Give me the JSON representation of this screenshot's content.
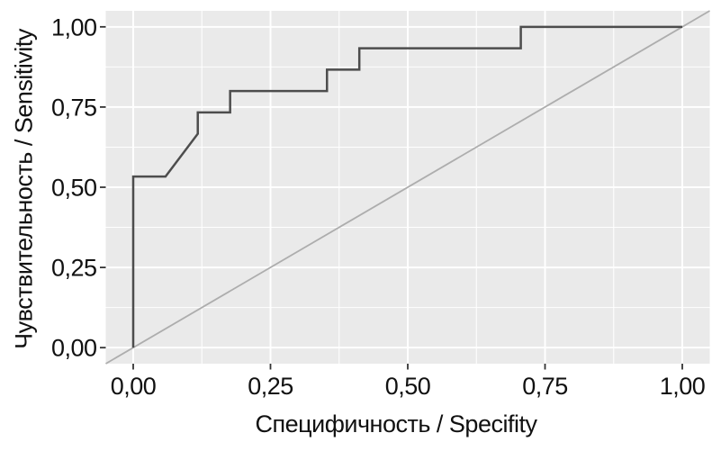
{
  "chart_data": {
    "type": "line",
    "title": "",
    "xlabel": "Специфичность / Specifity",
    "ylabel": "Чувствительность / Sensitivity",
    "xlim": [
      -0.05,
      1.05
    ],
    "ylim": [
      -0.05,
      1.05
    ],
    "x_tick_values": [
      0,
      0.25,
      0.5,
      0.75,
      1
    ],
    "x_tick_labels": [
      "0,00",
      "0,25",
      "0,50",
      "0,75",
      "1,00"
    ],
    "y_tick_values": [
      0,
      0.25,
      0.5,
      0.75,
      1
    ],
    "y_tick_labels": [
      "0,00",
      "0,25",
      "0,50",
      "0,75",
      "1,00"
    ],
    "minor_tick_values": [
      0.125,
      0.375,
      0.625,
      0.875
    ],
    "grid": "on",
    "legend": "none",
    "panel_background": "#eaeaea",
    "grid_color": "#ffffff",
    "tick_color": "#333333",
    "text_color": "#111111",
    "series": [
      {
        "name": "roc-curve",
        "color": "#4d4d4d",
        "stroke_width": 2.5,
        "points": [
          [
            0,
            0
          ],
          [
            0,
            0.5333
          ],
          [
            0.0588,
            0.5333
          ],
          [
            0.1176,
            0.6667
          ],
          [
            0.1176,
            0.7333
          ],
          [
            0.1765,
            0.7333
          ],
          [
            0.1765,
            0.8
          ],
          [
            0.3529,
            0.8
          ],
          [
            0.3529,
            0.8667
          ],
          [
            0.4118,
            0.8667
          ],
          [
            0.4118,
            0.9333
          ],
          [
            0.7059,
            0.9333
          ],
          [
            0.7059,
            1
          ],
          [
            1,
            1
          ]
        ]
      },
      {
        "name": "reference-diagonal",
        "color": "#adadad",
        "stroke_width": 1.8,
        "points": [
          [
            -0.05,
            -0.05
          ],
          [
            1.05,
            1.05
          ]
        ]
      }
    ]
  }
}
